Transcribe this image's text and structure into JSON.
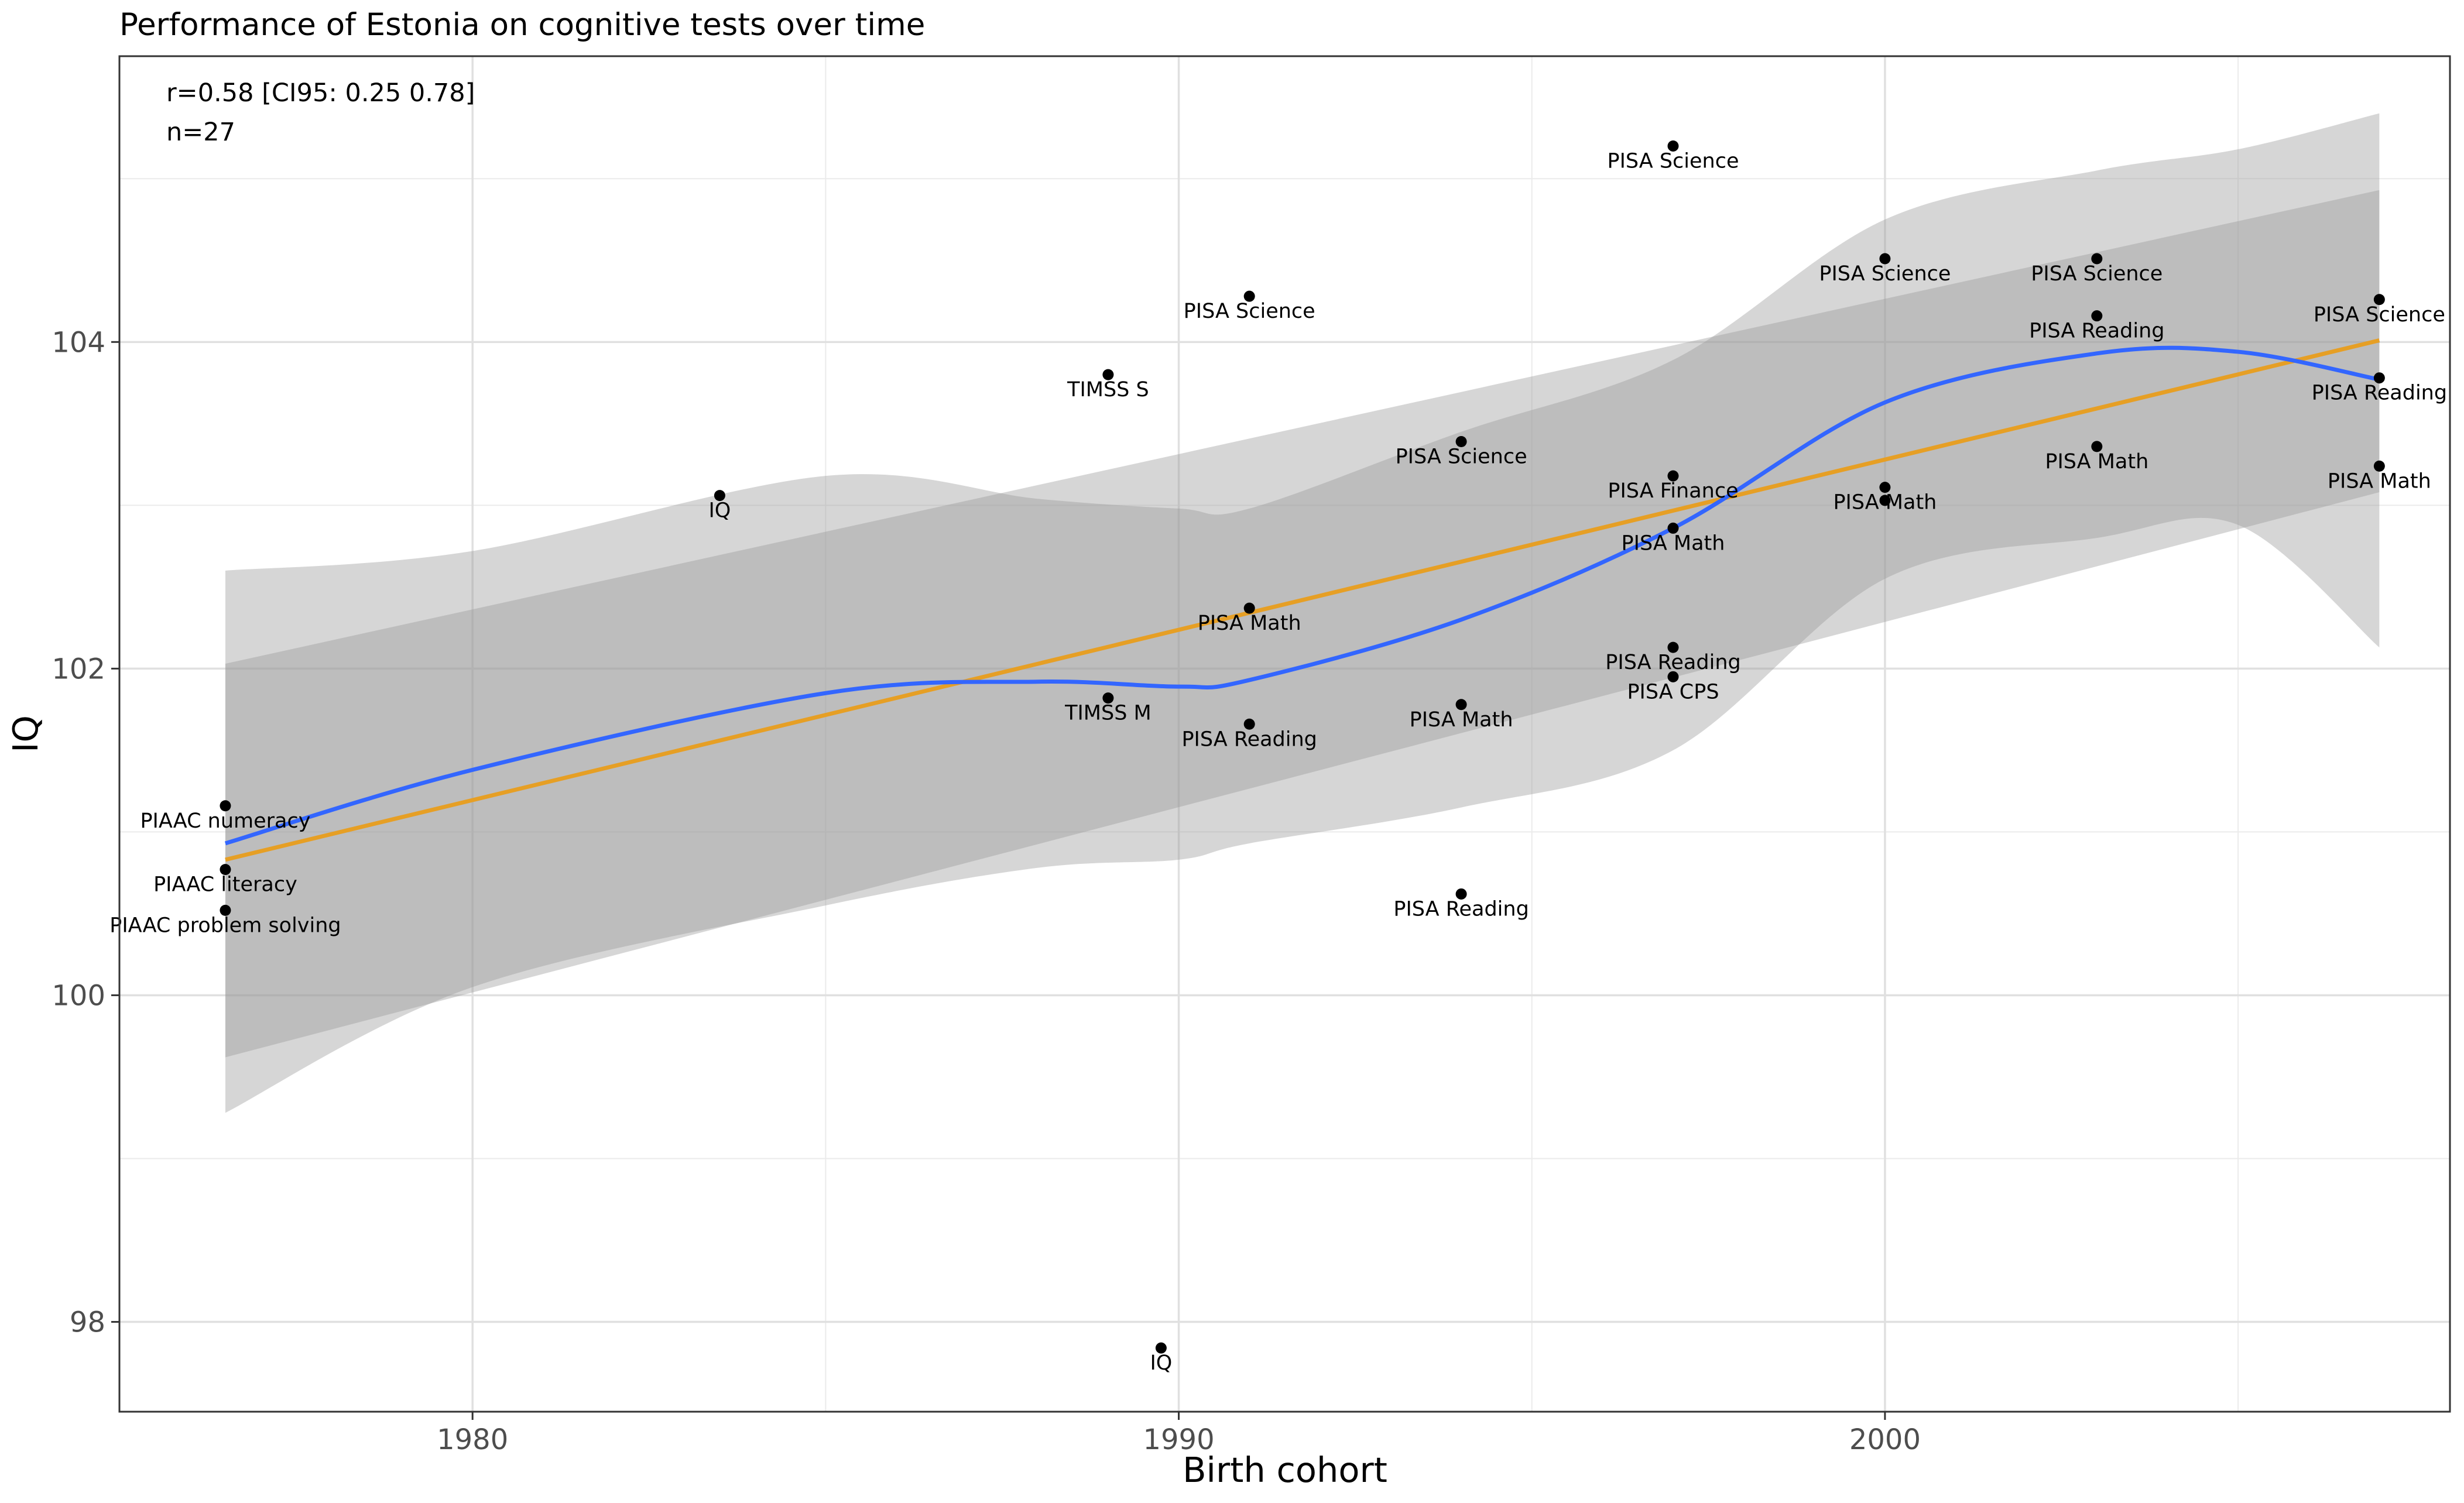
{
  "chart_data": {
    "type": "scatter",
    "title": "Performance of Estonia on cognitive tests over time",
    "xlabel": "Birth cohort",
    "ylabel": "IQ",
    "xlim": [
      1975.0,
      2008.0
    ],
    "ylim": [
      97.45,
      105.75
    ],
    "x_ticks": [
      1980,
      1990,
      2000
    ],
    "y_ticks": [
      98,
      100,
      102,
      104
    ],
    "grid": true,
    "annotation": [
      "r=0.58 [CI95: 0.25 0.78]",
      "n=27"
    ],
    "points": [
      {
        "x": 1976.5,
        "y": 101.16,
        "label": "PIAAC numeracy"
      },
      {
        "x": 1976.5,
        "y": 100.77,
        "label": "PIAAC literacy"
      },
      {
        "x": 1976.5,
        "y": 100.52,
        "label": "PIAAC problem solving"
      },
      {
        "x": 1983.5,
        "y": 103.06,
        "label": "IQ"
      },
      {
        "x": 1989.0,
        "y": 103.8,
        "label": "TIMSS S"
      },
      {
        "x": 1989.0,
        "y": 101.82,
        "label": "TIMSS M"
      },
      {
        "x": 1989.75,
        "y": 97.84,
        "label": "IQ"
      },
      {
        "x": 1991.0,
        "y": 104.28,
        "label": "PISA Science"
      },
      {
        "x": 1991.0,
        "y": 102.37,
        "label": "PISA Math"
      },
      {
        "x": 1991.0,
        "y": 101.66,
        "label": "PISA Reading"
      },
      {
        "x": 1994.0,
        "y": 103.39,
        "label": "PISA Science"
      },
      {
        "x": 1994.0,
        "y": 101.78,
        "label": "PISA Math"
      },
      {
        "x": 1994.0,
        "y": 100.62,
        "label": "PISA Reading"
      },
      {
        "x": 1997.0,
        "y": 105.2,
        "label": "PISA Science"
      },
      {
        "x": 1997.0,
        "y": 103.18,
        "label": "PISA Finance"
      },
      {
        "x": 1997.0,
        "y": 102.86,
        "label": "PISA Math"
      },
      {
        "x": 1997.0,
        "y": 102.13,
        "label": "PISA Reading"
      },
      {
        "x": 1997.0,
        "y": 101.95,
        "label": "PISA CPS"
      },
      {
        "x": 2000.0,
        "y": 104.51,
        "label": "PISA Science"
      },
      {
        "x": 2000.0,
        "y": 103.11,
        "label": "PISA Math"
      },
      {
        "x": 2000.0,
        "y": 103.03,
        "label": ""
      },
      {
        "x": 2003.0,
        "y": 104.51,
        "label": "PISA Science"
      },
      {
        "x": 2003.0,
        "y": 104.16,
        "label": "PISA Reading"
      },
      {
        "x": 2003.0,
        "y": 103.36,
        "label": "PISA Math"
      },
      {
        "x": 2007.0,
        "y": 104.26,
        "label": "PISA Science"
      },
      {
        "x": 2007.0,
        "y": 103.78,
        "label": "PISA Reading"
      },
      {
        "x": 2007.0,
        "y": 103.24,
        "label": "PISA Math"
      }
    ],
    "linear_fit": {
      "color": "#E69F25",
      "x": [
        1976.5,
        2007.0
      ],
      "y": [
        100.83,
        104.01
      ],
      "band_lower": [
        99.62,
        103.08
      ],
      "band_upper": [
        102.03,
        104.93
      ]
    },
    "loess_fit": {
      "color": "#3366FF",
      "x": [
        1976.5,
        1980,
        1985,
        1988,
        1990,
        1991,
        1994,
        1997,
        2000,
        2003,
        2005,
        2007
      ],
      "y": [
        100.93,
        101.38,
        101.85,
        101.92,
        101.89,
        101.93,
        102.3,
        102.86,
        103.63,
        103.93,
        103.94,
        103.77
      ],
      "band_lower": [
        99.28,
        100.05,
        100.55,
        100.78,
        100.83,
        100.93,
        101.15,
        101.5,
        102.55,
        102.8,
        102.88,
        102.13
      ],
      "band_upper": [
        102.6,
        102.72,
        103.18,
        103.04,
        102.98,
        102.98,
        103.45,
        103.89,
        104.75,
        105.05,
        105.18,
        105.4
      ]
    },
    "band_color": "#999999",
    "point_color": "#000000"
  }
}
